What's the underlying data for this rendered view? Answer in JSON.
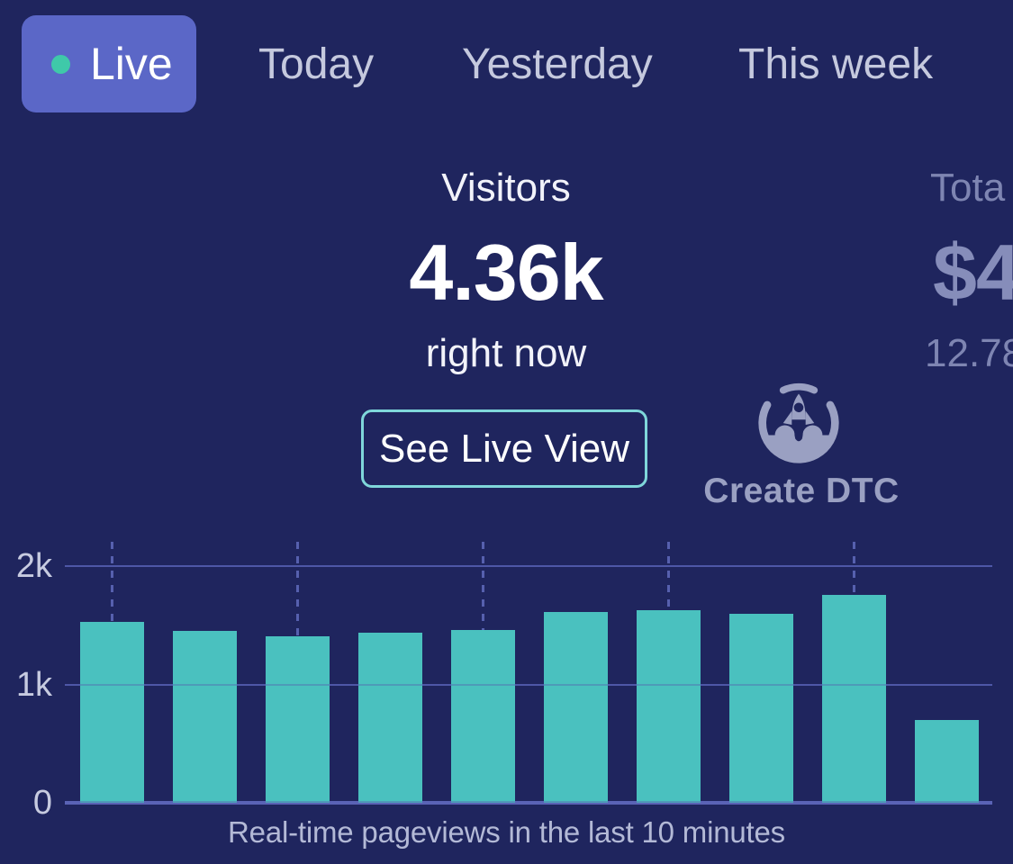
{
  "theme": {
    "background": "#1F255E",
    "active_tab_bg": "#5B67C7",
    "live_dot": "#3FC9A9",
    "bar_teal": "#4AC1BF",
    "button_border": "#7FD7DA",
    "inactive_tab_text": "#C5C9DE",
    "dimmed_text": "#7E85B2",
    "logo_color": "#9AA0C2",
    "gridline": "#4A53A2",
    "baseline": "#5E66BB"
  },
  "tabs": {
    "active": {
      "label": "Live"
    },
    "items": [
      {
        "label": "Today"
      },
      {
        "label": "Yesterday"
      },
      {
        "label": "This week"
      }
    ]
  },
  "stats": {
    "visitors": {
      "label": "Visitors",
      "value": "4.36k",
      "sublabel": "right now"
    },
    "total_clipped": {
      "label": "Tota",
      "value": "$4",
      "sublabel": "12.78"
    }
  },
  "buttons": {
    "see_live_view": "See Live View"
  },
  "logo": {
    "text": "Create DTC"
  },
  "chart_data": {
    "type": "bar",
    "caption": "Real-time pageviews in the last 10 minutes",
    "values": [
      1530,
      1450,
      1410,
      1440,
      1460,
      1610,
      1630,
      1600,
      1760,
      700
    ],
    "ylim": [
      0,
      2000
    ],
    "yticks": [
      {
        "label": "2k",
        "value": 2000
      },
      {
        "label": "1k",
        "value": 1000
      },
      {
        "label": "0",
        "value": 0
      }
    ],
    "bar_color": "#4AC1BF",
    "grid": "horizontal lines at 0/1k/2k, dashed vertical guides above alternate bars",
    "dashed_guide_bar_indexes": [
      0,
      2,
      4,
      6,
      8
    ],
    "legend": "none",
    "xlabel": "",
    "ylabel": ""
  }
}
